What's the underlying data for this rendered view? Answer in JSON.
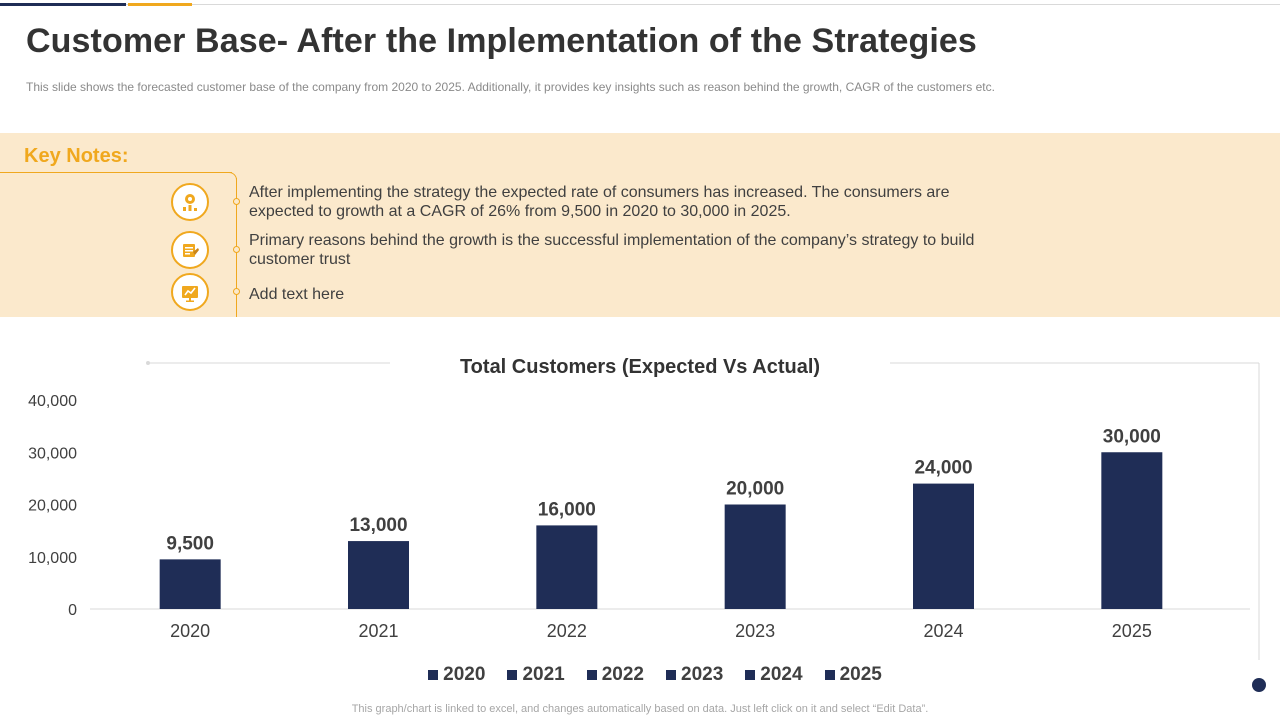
{
  "header": {
    "title": "Customer Base- After the Implementation of the Strategies",
    "subtitle": "This slide shows the forecasted customer base of the company from 2020 to 2025. Additionally, it provides key insights such as reason behind the growth, CAGR of the customers etc."
  },
  "notes": {
    "heading": "Key Notes:",
    "items": [
      {
        "icon": "growth-chart-icon",
        "text": "After implementing the strategy the expected rate of consumers has increased. The consumers are expected to growth at a CAGR of 26% from 9,500 in 2020 to 30,000 in 2025."
      },
      {
        "icon": "handshake-icon",
        "text": "Primary reasons behind the growth is the successful implementation of the company’s strategy to build customer trust"
      },
      {
        "icon": "strategy-board-icon",
        "text": "Add text here"
      }
    ]
  },
  "colors": {
    "bar": "#1f2d56",
    "accent": "#f0a81e",
    "band": "#fbe9cc"
  },
  "chart_data": {
    "type": "bar",
    "title": "Total Customers (Expected Vs Actual)",
    "categories": [
      "2020",
      "2021",
      "2022",
      "2023",
      "2024",
      "2025"
    ],
    "values": [
      9500,
      13000,
      16000,
      20000,
      24000,
      30000
    ],
    "data_labels": [
      "9,500",
      "13,000",
      "16,000",
      "20,000",
      "24,000",
      "30,000"
    ],
    "ylim": [
      0,
      40000
    ],
    "yticks": [
      0,
      10000,
      20000,
      30000,
      40000
    ],
    "ytick_labels": [
      "0",
      "10,000",
      "20,000",
      "30,000",
      "40,000"
    ],
    "xlabel": "",
    "ylabel": "",
    "grid": false,
    "legend": [
      "2020",
      "2021",
      "2022",
      "2023",
      "2024",
      "2025"
    ],
    "legend_position": "bottom"
  },
  "footer": {
    "note": "This graph/chart is linked to excel, and changes automatically based on data. Just left click on it and select “Edit Data”."
  }
}
